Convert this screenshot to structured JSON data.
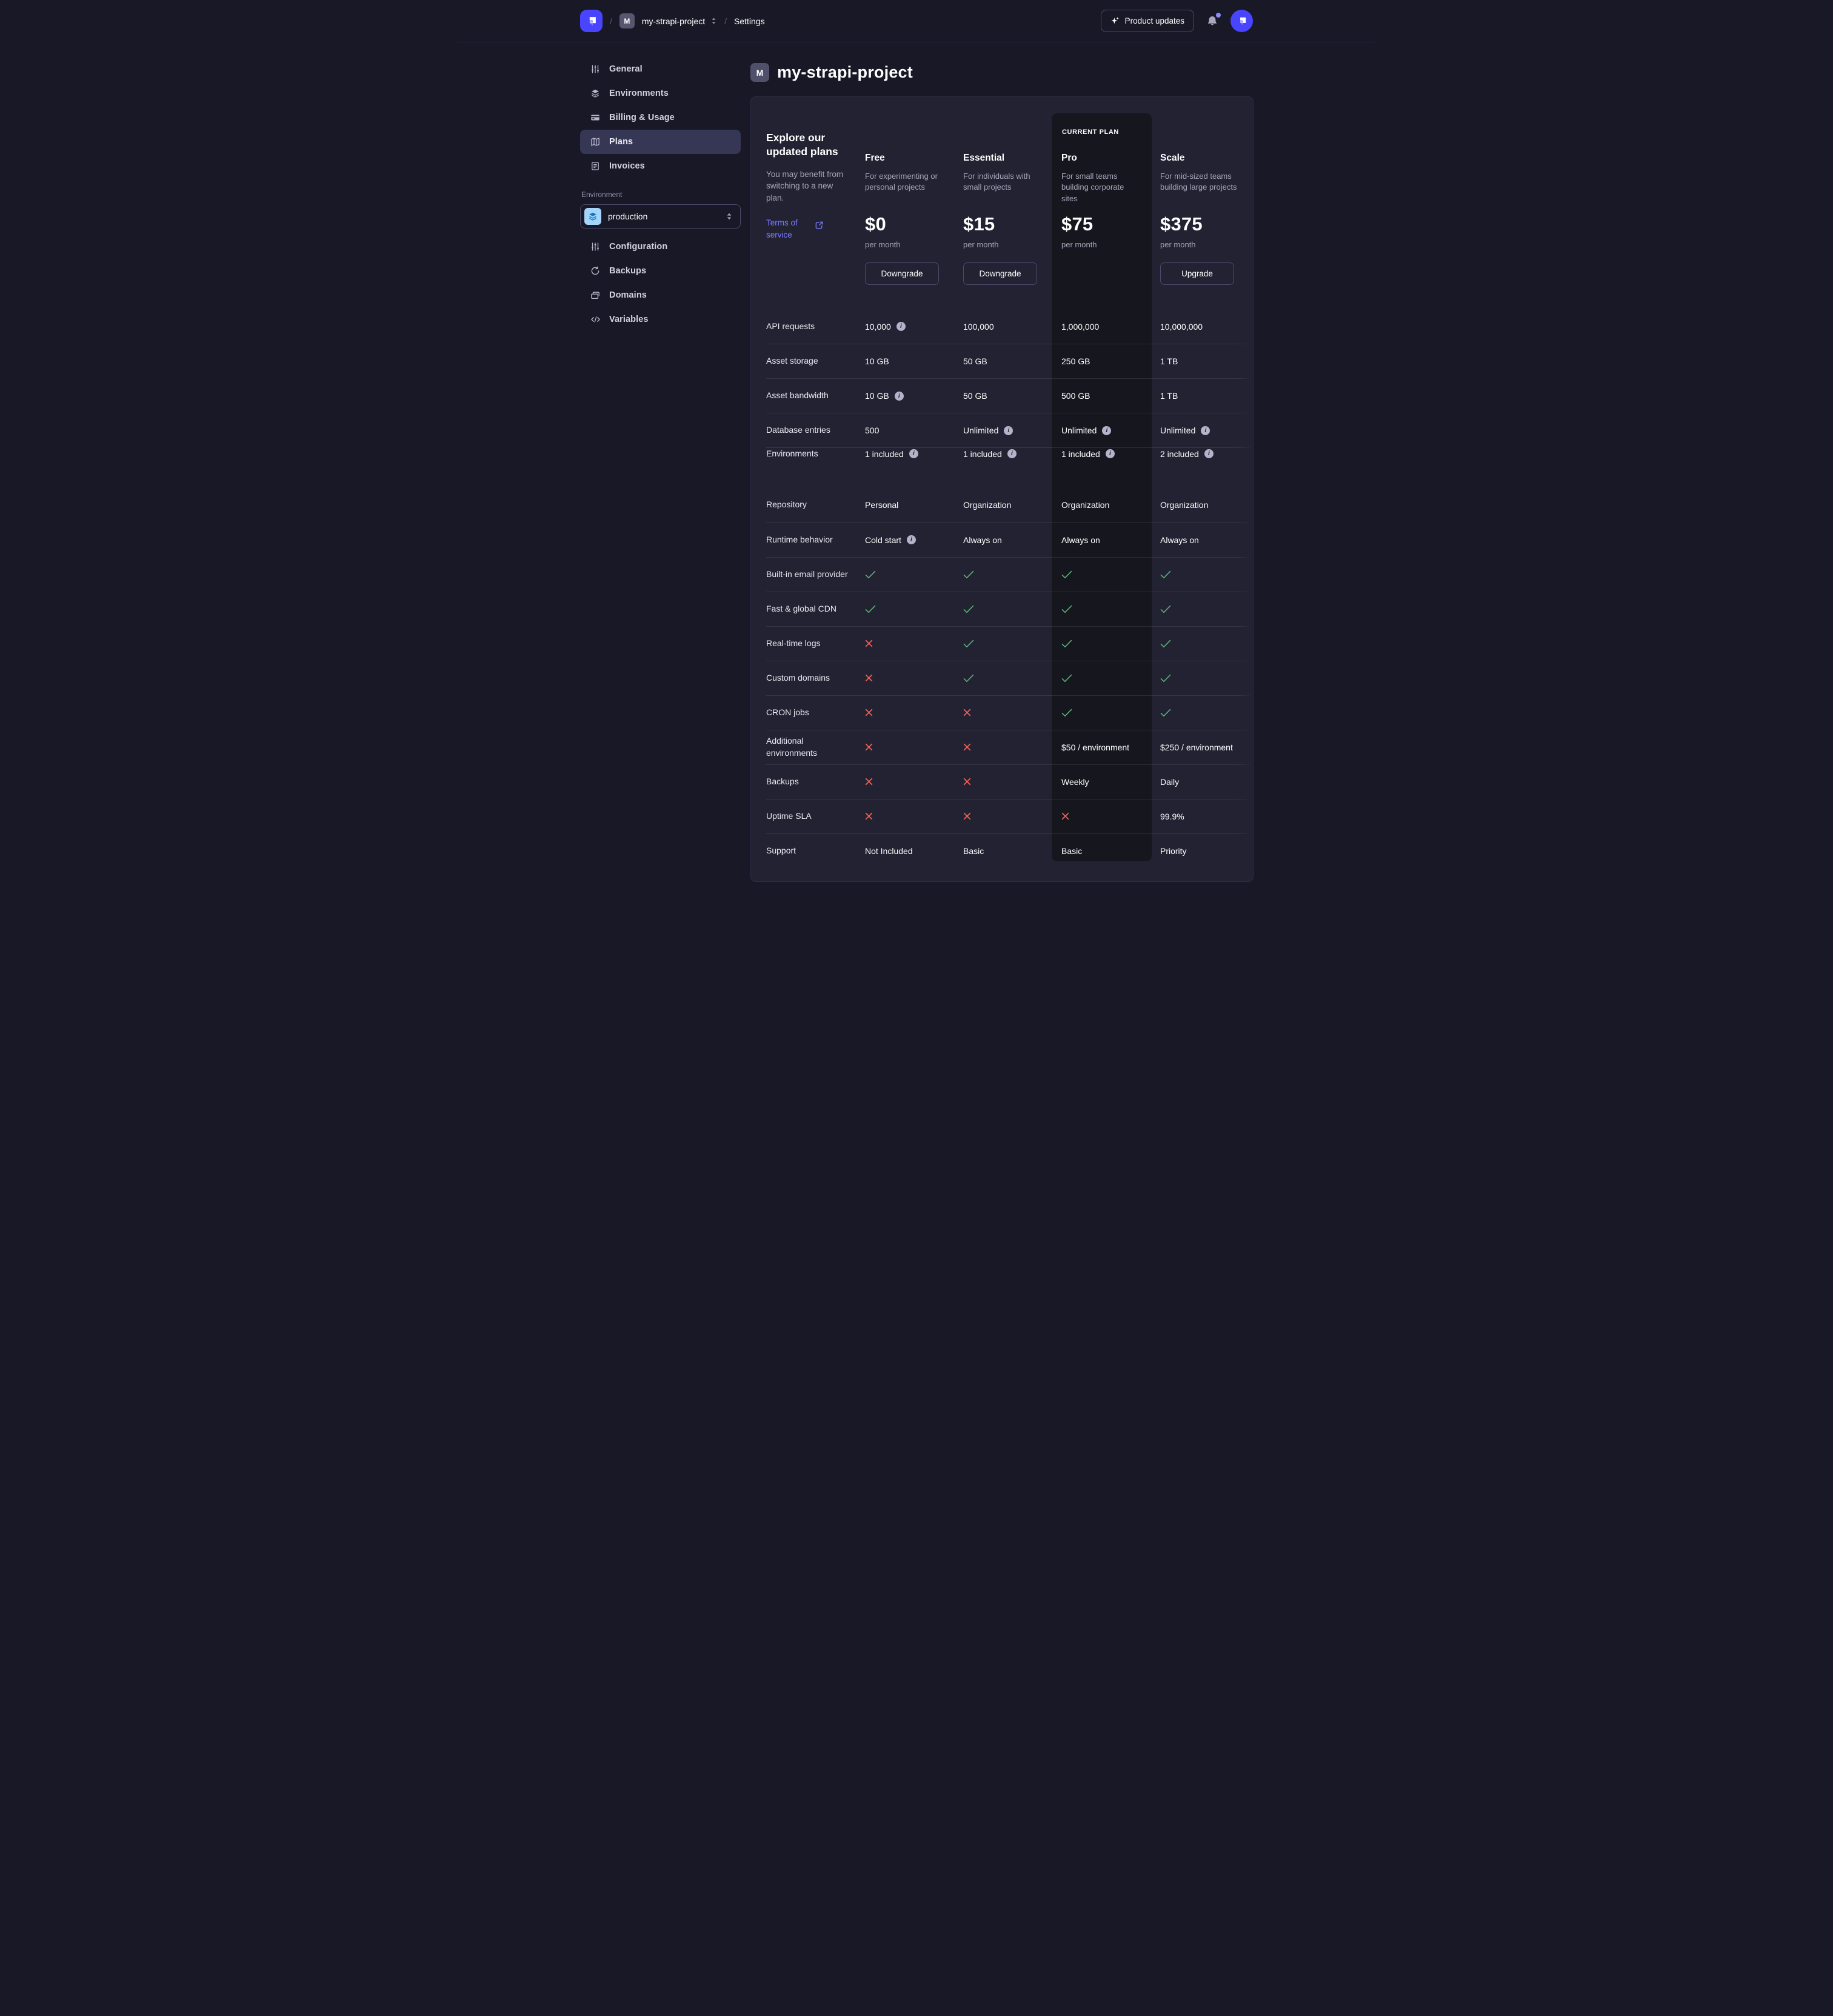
{
  "header": {
    "separator": "/",
    "project_initial": "M",
    "project": "my-strapi-project",
    "section": "Settings",
    "product_updates_label": "Product updates"
  },
  "sidebar": {
    "items": [
      {
        "label": "General",
        "icon": "sliders-icon",
        "active": false
      },
      {
        "label": "Environments",
        "icon": "layers-icon",
        "active": false
      },
      {
        "label": "Billing & Usage",
        "icon": "credit-card-icon",
        "active": false
      },
      {
        "label": "Plans",
        "icon": "map-icon",
        "active": true
      },
      {
        "label": "Invoices",
        "icon": "invoice-icon",
        "active": false
      }
    ],
    "environment_label": "Environment",
    "environment_select": {
      "value": "production",
      "icon": "layers-icon"
    },
    "environment_items": [
      {
        "label": "Configuration",
        "icon": "sliders-icon"
      },
      {
        "label": "Backups",
        "icon": "refresh-icon"
      },
      {
        "label": "Domains",
        "icon": "stack-icon"
      },
      {
        "label": "Variables",
        "icon": "code-icon"
      }
    ]
  },
  "main": {
    "project_initial": "M",
    "title": "my-strapi-project",
    "plans": {
      "intro": {
        "heading": "Explore our updated plans",
        "description": "You may benefit from switching to a new plan.",
        "terms_link": "Terms of service"
      },
      "current_plan_label": "CURRENT PLAN",
      "columns": [
        {
          "name": "Free",
          "description": "For experimenting or personal projects",
          "price": "$0",
          "period": "per month",
          "button": "Downgrade",
          "current": false
        },
        {
          "name": "Essential",
          "description": "For individuals with small projects",
          "price": "$15",
          "period": "per month",
          "button": "Downgrade",
          "current": false
        },
        {
          "name": "Pro",
          "description": "For small teams building corporate sites",
          "price": "$75",
          "period": "per month",
          "button": null,
          "current": true
        },
        {
          "name": "Scale",
          "description": "For mid-sized teams building large projects",
          "price": "$375",
          "period": "per month",
          "button": "Upgrade",
          "current": false
        }
      ],
      "rows": [
        {
          "label": "API requests",
          "cells": [
            {
              "text": "10,000",
              "info": true
            },
            {
              "text": "100,000"
            },
            {
              "text": "1,000,000"
            },
            {
              "text": "10,000,000"
            }
          ]
        },
        {
          "label": "Asset storage",
          "cells": [
            {
              "text": "10 GB"
            },
            {
              "text": "50 GB"
            },
            {
              "text": "250 GB"
            },
            {
              "text": "1 TB"
            }
          ]
        },
        {
          "label": "Asset bandwidth",
          "cells": [
            {
              "text": "10 GB",
              "info": true
            },
            {
              "text": "50 GB"
            },
            {
              "text": "500 GB"
            },
            {
              "text": "1 TB"
            }
          ]
        },
        {
          "label": "Database entries",
          "cells": [
            {
              "text": "500"
            },
            {
              "text": "Unlimited",
              "info": true
            },
            {
              "text": "Unlimited",
              "info": true
            },
            {
              "text": "Unlimited",
              "info": true
            }
          ]
        },
        {
          "label": "Environments",
          "section_end": true,
          "cells": [
            {
              "text": "1 included",
              "info": true
            },
            {
              "text": "1 included",
              "info": true
            },
            {
              "text": "1 included",
              "info": true
            },
            {
              "text": "2 included",
              "info": true
            }
          ]
        },
        {
          "label": "Repository",
          "cells": [
            {
              "text": "Personal"
            },
            {
              "text": "Organization"
            },
            {
              "text": "Organization"
            },
            {
              "text": "Organization"
            }
          ]
        },
        {
          "label": "Runtime behavior",
          "cells": [
            {
              "text": "Cold start",
              "info": true
            },
            {
              "text": "Always on"
            },
            {
              "text": "Always on"
            },
            {
              "text": "Always on"
            }
          ]
        },
        {
          "label": "Built-in email provider",
          "cells": [
            {
              "mark": "check"
            },
            {
              "mark": "check"
            },
            {
              "mark": "check"
            },
            {
              "mark": "check"
            }
          ]
        },
        {
          "label": "Fast & global CDN",
          "cells": [
            {
              "mark": "check"
            },
            {
              "mark": "check"
            },
            {
              "mark": "check"
            },
            {
              "mark": "check"
            }
          ]
        },
        {
          "label": "Real-time logs",
          "cells": [
            {
              "mark": "cross"
            },
            {
              "mark": "check"
            },
            {
              "mark": "check"
            },
            {
              "mark": "check"
            }
          ]
        },
        {
          "label": "Custom domains",
          "cells": [
            {
              "mark": "cross"
            },
            {
              "mark": "check"
            },
            {
              "mark": "check"
            },
            {
              "mark": "check"
            }
          ]
        },
        {
          "label": "CRON jobs",
          "cells": [
            {
              "mark": "cross"
            },
            {
              "mark": "cross"
            },
            {
              "mark": "check"
            },
            {
              "mark": "check"
            }
          ]
        },
        {
          "label": "Additional environments",
          "cells": [
            {
              "mark": "cross"
            },
            {
              "mark": "cross"
            },
            {
              "text": "$50 / environment"
            },
            {
              "text": "$250 / environment"
            }
          ]
        },
        {
          "label": "Backups",
          "cells": [
            {
              "mark": "cross"
            },
            {
              "mark": "cross"
            },
            {
              "text": "Weekly"
            },
            {
              "text": "Daily"
            }
          ]
        },
        {
          "label": "Uptime SLA",
          "cells": [
            {
              "mark": "cross"
            },
            {
              "mark": "cross"
            },
            {
              "mark": "cross"
            },
            {
              "text": "99.9%"
            }
          ]
        },
        {
          "label": "Support",
          "cells": [
            {
              "text": "Not Included"
            },
            {
              "text": "Basic"
            },
            {
              "text": "Basic"
            },
            {
              "text": "Priority"
            }
          ]
        }
      ]
    }
  },
  "colors": {
    "brand": "#4945ff",
    "link": "#7b79ff",
    "success": "#5cb176",
    "danger": "#ee5e52"
  }
}
